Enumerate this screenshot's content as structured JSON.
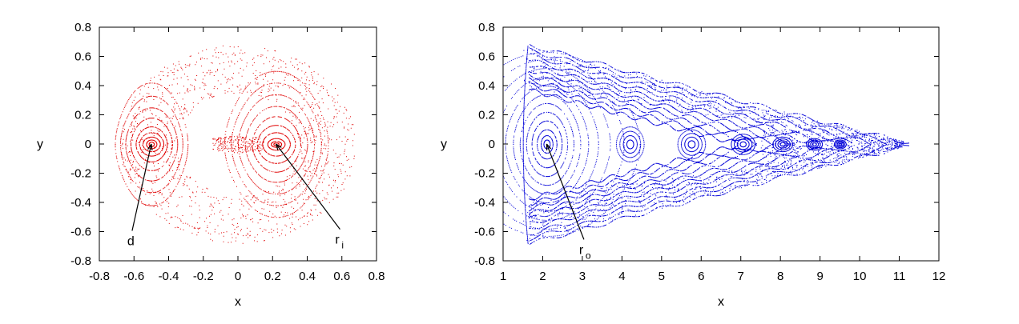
{
  "chart_data": [
    {
      "type": "scatter",
      "xlabel": "x",
      "ylabel": "y",
      "xlim": [
        -0.8,
        0.8
      ],
      "ylim": [
        -0.8,
        0.8
      ],
      "xticks": [
        "-0.8",
        "-0.6",
        "-0.4",
        "-0.2",
        "0",
        "0.2",
        "0.4",
        "0.6",
        "0.8"
      ],
      "yticks": [
        "-0.8",
        "-0.6",
        "-0.4",
        "-0.2",
        "0",
        "0.2",
        "0.4",
        "0.6",
        "0.8"
      ],
      "color": "#e00000",
      "grid": false,
      "series": [
        {
          "kind": "closed-orbits-around-center",
          "center": [
            -0.5,
            0.0
          ],
          "radii_x": [
            0.015,
            0.03,
            0.05,
            0.07,
            0.09,
            0.12,
            0.15,
            0.18,
            0.21
          ],
          "radii_y": [
            0.015,
            0.03,
            0.05,
            0.08,
            0.12,
            0.18,
            0.25,
            0.33,
            0.42
          ]
        },
        {
          "kind": "closed-orbits-around-center",
          "center": [
            0.22,
            0.0
          ],
          "radii_x": [
            0.015,
            0.03,
            0.05,
            0.08,
            0.11,
            0.14,
            0.18,
            0.22,
            0.26,
            0.3
          ],
          "radii_y": [
            0.01,
            0.02,
            0.04,
            0.08,
            0.13,
            0.19,
            0.26,
            0.34,
            0.42,
            0.5
          ]
        },
        {
          "kind": "outer-boundary",
          "center": [
            0.0,
            0.0
          ],
          "radii_x": [
            0.62,
            0.67
          ],
          "radii_y": [
            0.62,
            0.67
          ]
        }
      ],
      "annotations": [
        {
          "label": "d",
          "sub": "",
          "point": [
            -0.5,
            0.0
          ],
          "text_at": [
            -0.62,
            -0.66
          ]
        },
        {
          "label": "r",
          "sub": "i",
          "point": [
            0.22,
            0.0
          ],
          "text_at": [
            0.58,
            -0.65
          ]
        }
      ]
    },
    {
      "type": "scatter",
      "xlabel": "x",
      "ylabel": "y",
      "xlim": [
        1,
        12
      ],
      "ylim": [
        -0.8,
        0.8
      ],
      "xticks": [
        "1",
        "2",
        "3",
        "4",
        "5",
        "6",
        "7",
        "8",
        "9",
        "10",
        "11",
        "12"
      ],
      "yticks": [
        "-0.8",
        "-0.6",
        "-0.4",
        "-0.2",
        "0",
        "0.2",
        "0.4",
        "0.6",
        "0.8"
      ],
      "color": "#0000d8",
      "grid": false,
      "series": [
        {
          "kind": "closed-orbits-around-center",
          "center": [
            2.1,
            0.0
          ],
          "radii_x": [
            0.08,
            0.15,
            0.25,
            0.38,
            0.52,
            0.68,
            0.85,
            1.05,
            1.3,
            1.6,
            1.95,
            2.35
          ],
          "radii_y": [
            0.03,
            0.06,
            0.1,
            0.16,
            0.22,
            0.28,
            0.34,
            0.4,
            0.46,
            0.52,
            0.58,
            0.63
          ]
        },
        {
          "kind": "island-chain",
          "centers_x": [
            4.2,
            5.75,
            7.05,
            8.05,
            8.85,
            9.5
          ],
          "center_y": 0.0,
          "size_x": [
            0.35,
            0.35,
            0.3,
            0.25,
            0.2,
            0.15
          ],
          "size_y": [
            0.12,
            0.1,
            0.07,
            0.05,
            0.04,
            0.03
          ]
        },
        {
          "kind": "triangular-envelope",
          "apex_x": 11.1,
          "base_x": 1.5,
          "half_height_at_base": 0.68
        }
      ],
      "annotations": [
        {
          "label": "r",
          "sub": "o",
          "point": [
            2.1,
            0.0
          ],
          "text_at": [
            3.0,
            -0.72
          ]
        }
      ]
    }
  ]
}
